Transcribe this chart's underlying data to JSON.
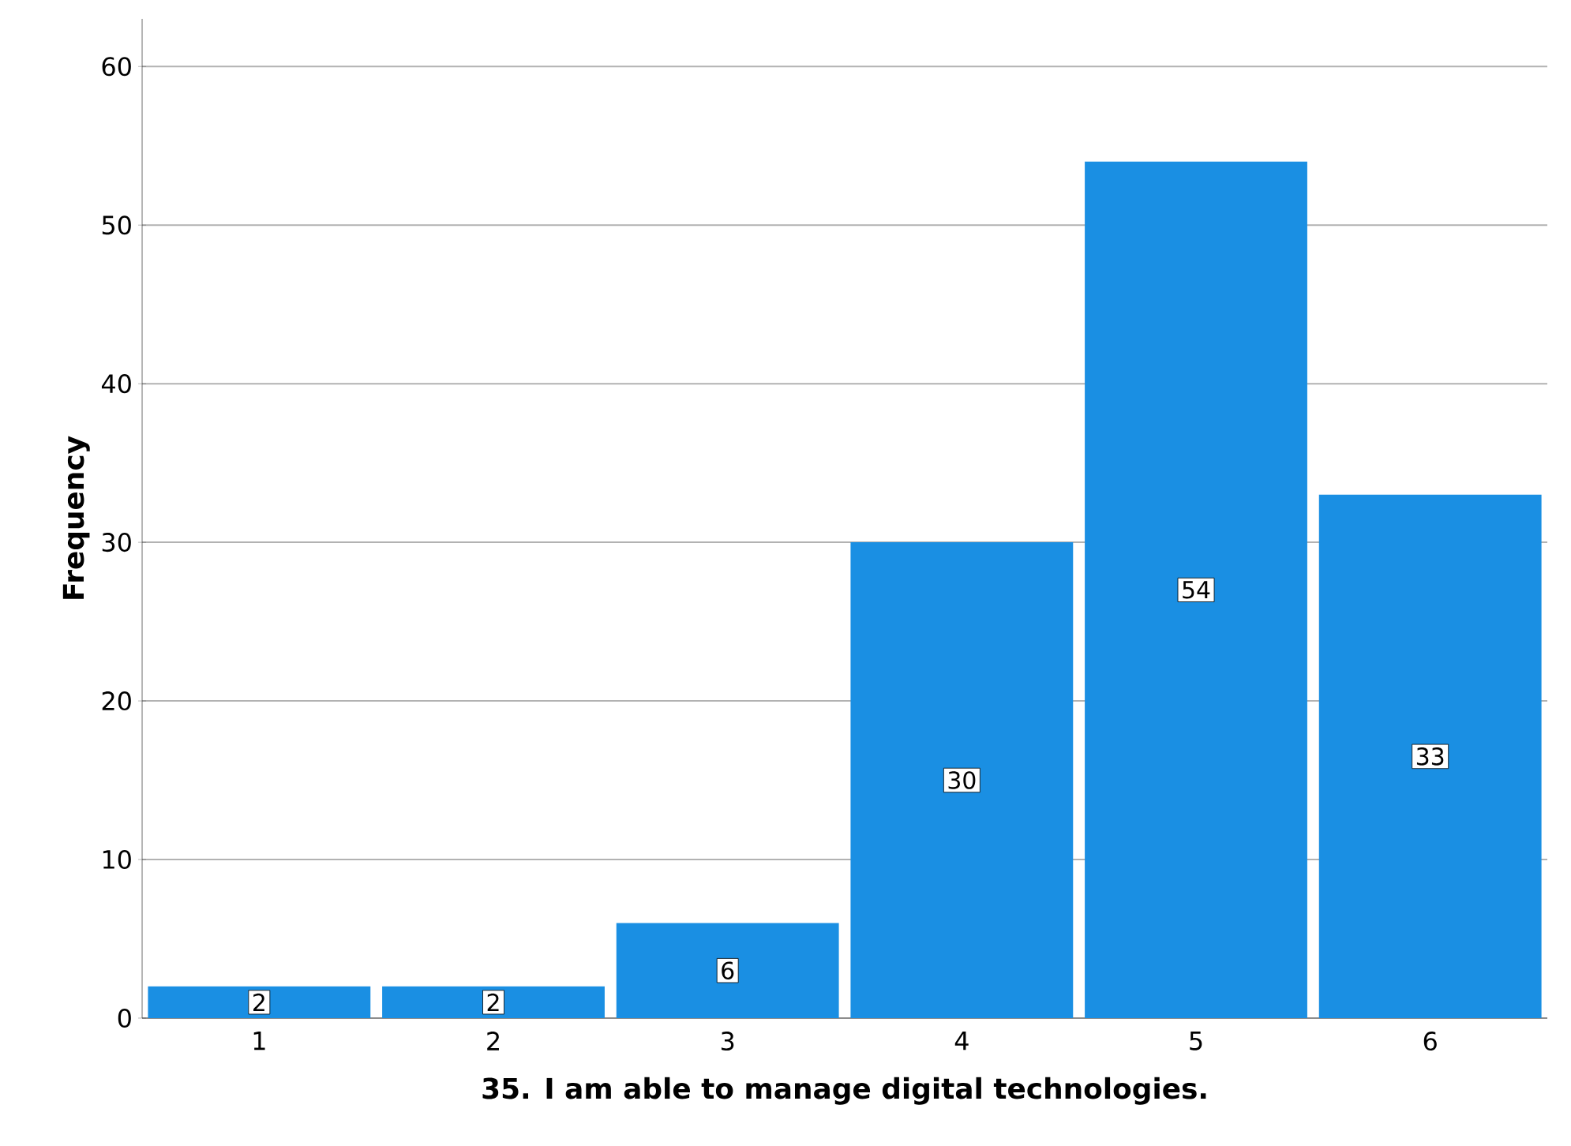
{
  "chart_data": {
    "type": "bar",
    "xlabel": "35. I am able to manage digital technologies.",
    "ylabel": "Frequency",
    "categories": [
      "1",
      "2",
      "3",
      "4",
      "5",
      "6"
    ],
    "values": [
      2,
      2,
      6,
      30,
      54,
      33
    ],
    "color": "#1a8fe3",
    "ylim": [
      0,
      63
    ],
    "yticks": [
      0,
      10,
      20,
      30,
      40,
      50,
      60
    ],
    "grid": "y",
    "data_labels": true
  }
}
